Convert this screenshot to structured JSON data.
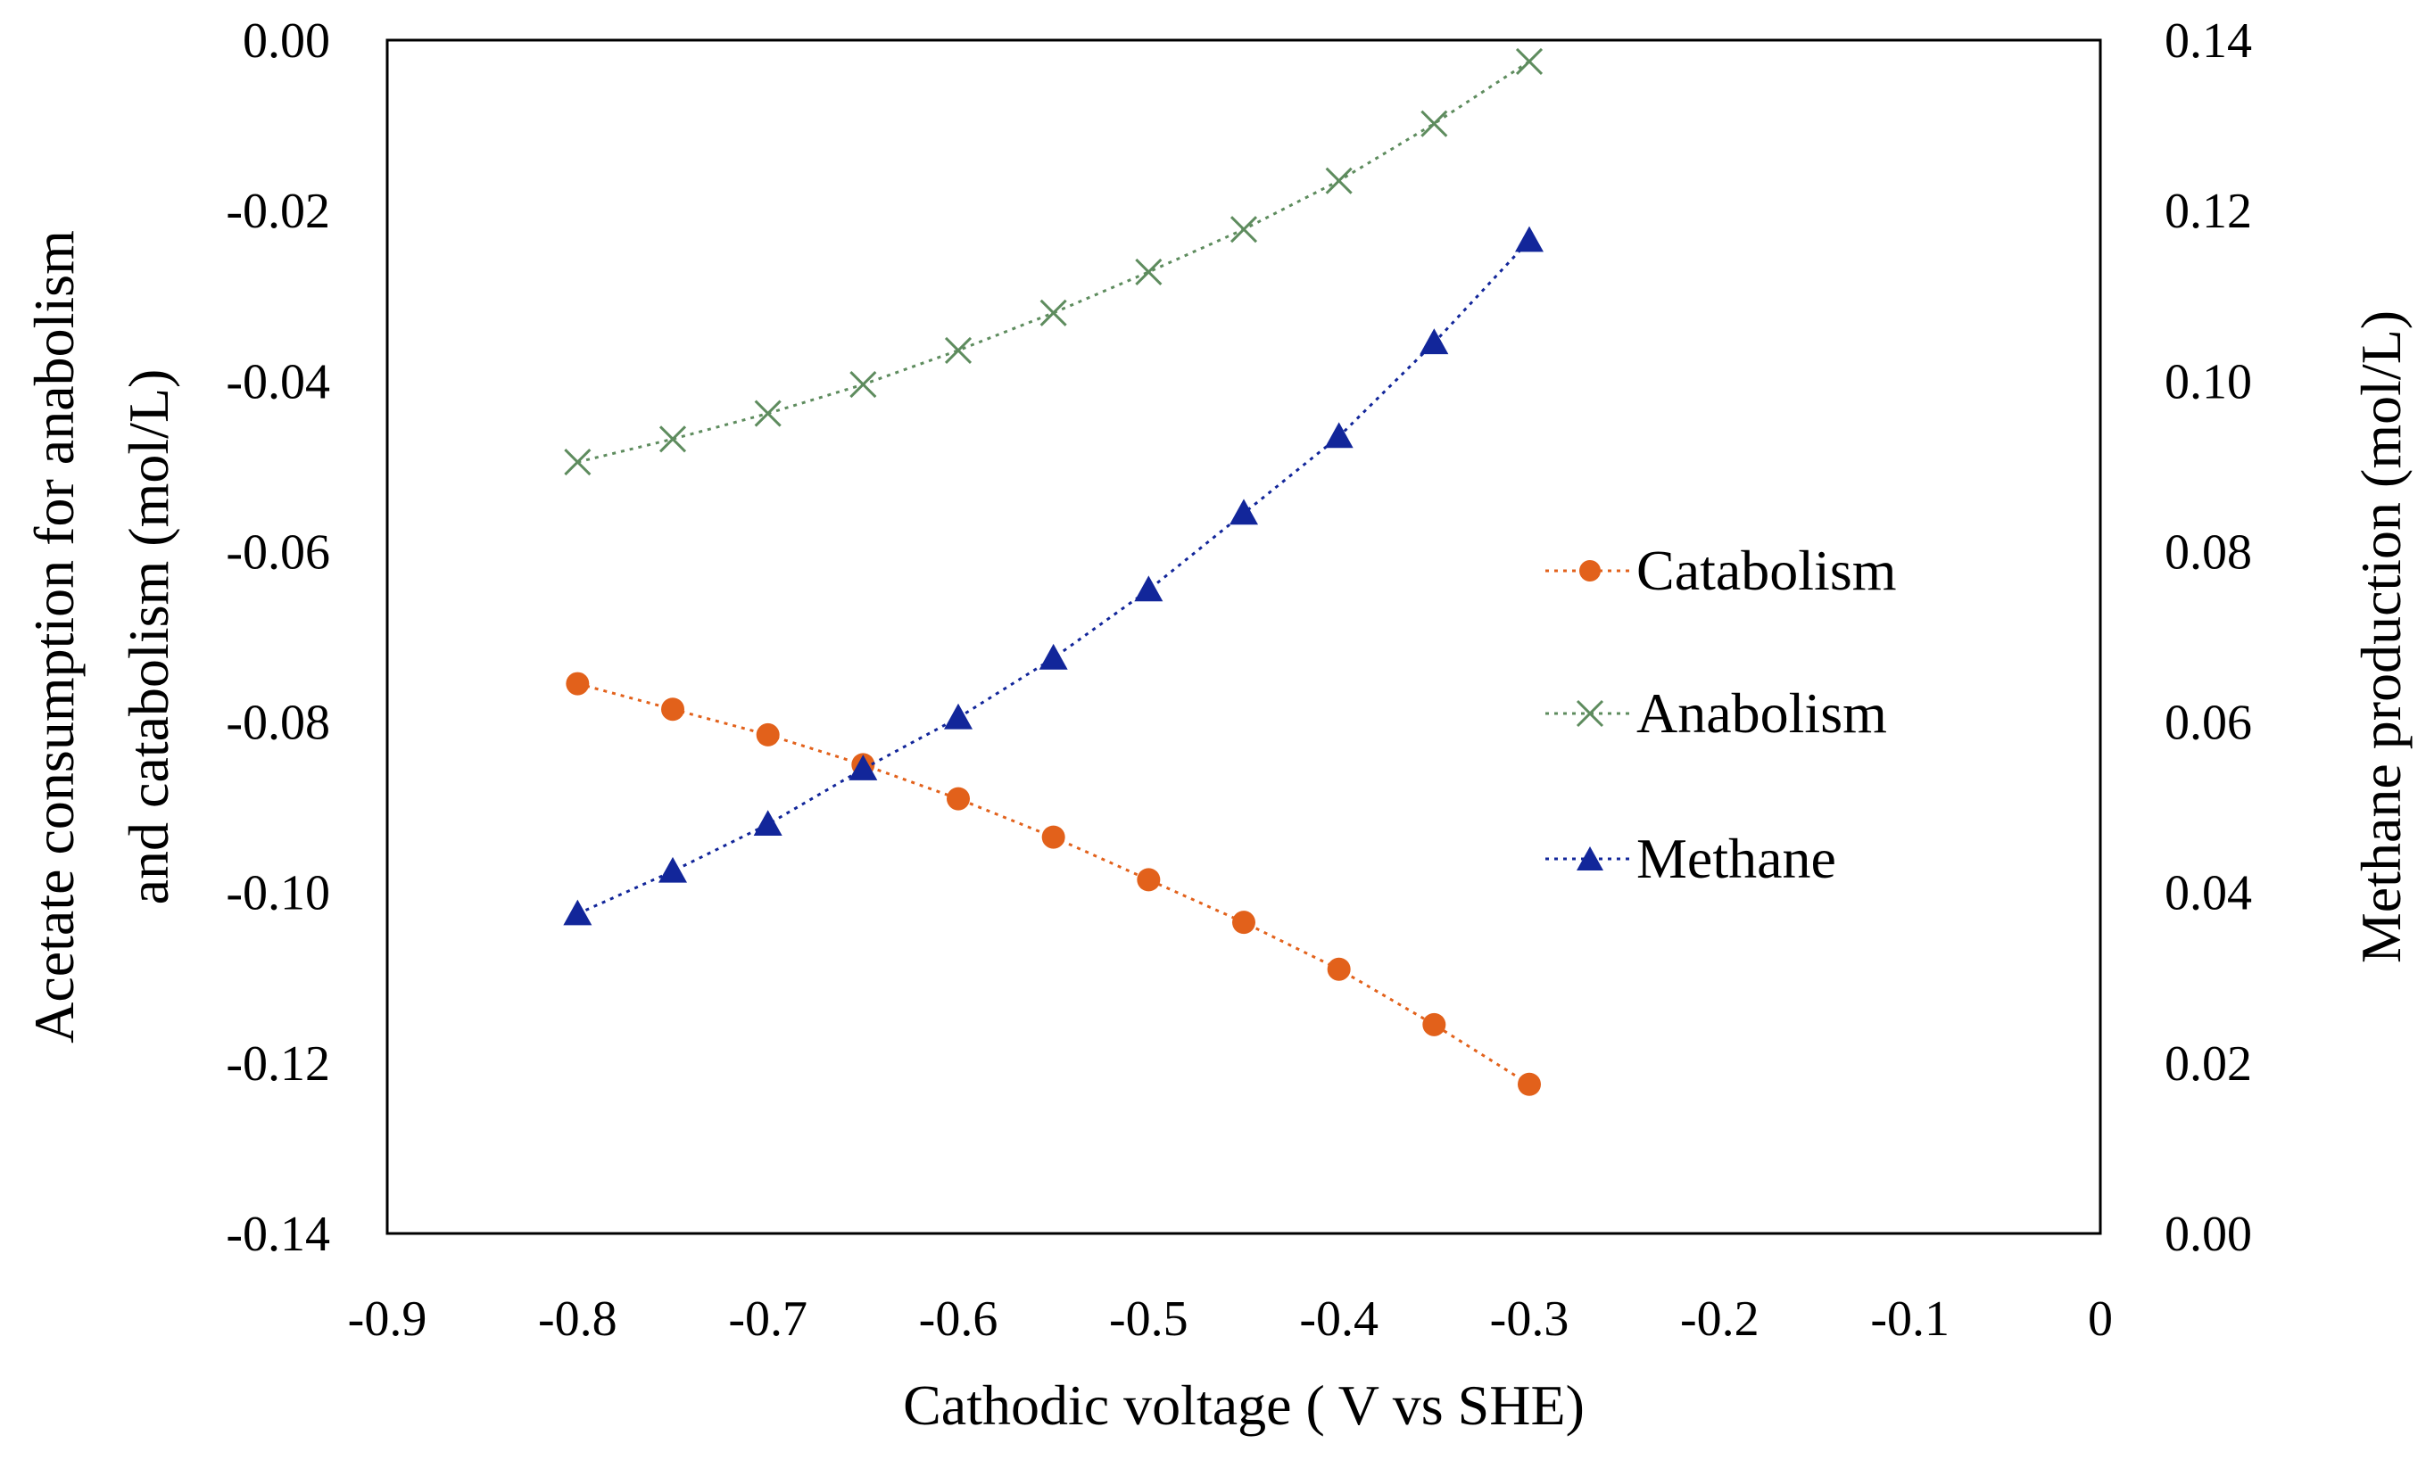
{
  "chart_data": {
    "type": "line",
    "title": "",
    "xlabel": "Cathodic voltage ( V vs SHE)",
    "ylabel_left_line1": "Acetate consumption for anabolism",
    "ylabel_left_line2": "and catabolism (mol/L)",
    "ylabel_right": "Methane production (mol/L)",
    "xlim": [
      -0.9,
      0
    ],
    "ylim_left": [
      -0.14,
      0
    ],
    "ylim_right": [
      0,
      0.14
    ],
    "x_ticks": [
      -0.9,
      -0.8,
      -0.7,
      -0.6,
      -0.5,
      -0.4,
      -0.3,
      -0.2,
      -0.1,
      0
    ],
    "x_tick_labels": [
      "-0.9",
      "-0.8",
      "-0.7",
      "-0.6",
      "-0.5",
      "-0.4",
      "-0.3",
      "-0.2",
      "-0.1",
      "0"
    ],
    "y_left_ticks": [
      0,
      -0.02,
      -0.04,
      -0.06,
      -0.08,
      -0.1,
      -0.12,
      -0.14
    ],
    "y_left_tick_labels": [
      "0.00",
      "-0.02",
      "-0.04",
      "-0.06",
      "-0.08",
      "-0.10",
      "-0.12",
      "-0.14"
    ],
    "y_right_ticks": [
      0.14,
      0.12,
      0.1,
      0.08,
      0.06,
      0.04,
      0.02,
      0
    ],
    "y_right_tick_labels": [
      "0.14",
      "0.12",
      "0.10",
      "0.08",
      "0.06",
      "0.04",
      "0.02",
      "0.00"
    ],
    "grid": false,
    "legend_position": "right-middle",
    "x": [
      -0.8,
      -0.75,
      -0.7,
      -0.65,
      -0.6,
      -0.55,
      -0.5,
      -0.45,
      -0.4,
      -0.35,
      -0.3
    ],
    "series": [
      {
        "name": "Catabolism",
        "axis": "left",
        "marker": "circle",
        "color": "#E2611B",
        "values": [
          -0.0755,
          -0.0785,
          -0.0815,
          -0.085,
          -0.089,
          -0.0935,
          -0.0985,
          -0.1035,
          -0.109,
          -0.1155,
          -0.1225
        ]
      },
      {
        "name": "Anabolism",
        "axis": "left",
        "marker": "x",
        "color": "#5E8C5E",
        "values": [
          -0.0495,
          -0.0468,
          -0.0438,
          -0.0404,
          -0.0364,
          -0.032,
          -0.0272,
          -0.0222,
          -0.0165,
          -0.0098,
          -0.0025
        ]
      },
      {
        "name": "Methane",
        "axis": "right",
        "marker": "triangle",
        "color": "#12269A",
        "values": [
          0.0375,
          0.0425,
          0.048,
          0.0545,
          0.0605,
          0.0675,
          0.0755,
          0.0845,
          0.0935,
          0.1045,
          0.1165
        ]
      }
    ]
  }
}
